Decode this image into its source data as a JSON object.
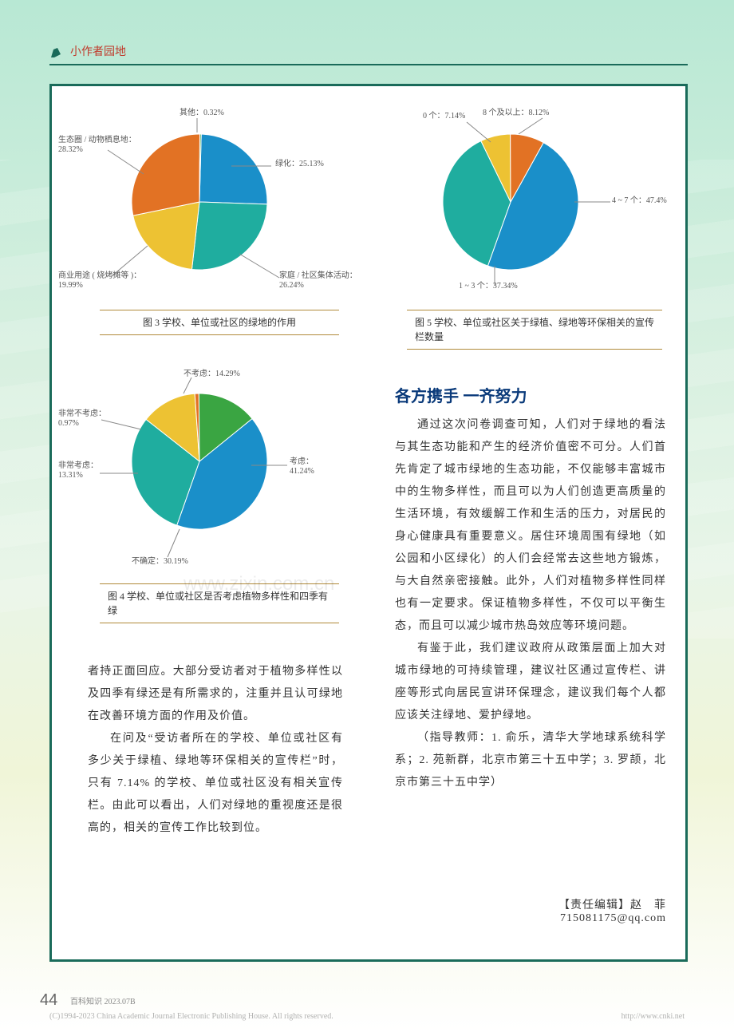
{
  "header": {
    "section_title": "小作者园地"
  },
  "charts": {
    "chart3": {
      "type": "pie",
      "caption": "图 3 学校、单位或社区的绿地的作用",
      "slices": [
        {
          "label": "绿化",
          "value": 25.13,
          "color": "#1a8fc9",
          "label_text": "绿化：25.13%"
        },
        {
          "label": "家庭/社区集体活动",
          "value": 26.24,
          "color": "#1fad9f",
          "label_text": "家庭 / 社区集体活动：\n26.24%"
        },
        {
          "label": "商业用途(烧烤摊等)",
          "value": 19.99,
          "color": "#edc233",
          "label_text": "商业用途 ( 烧烤摊等 )：\n19.99%"
        },
        {
          "label": "生态圈/动物栖息地",
          "value": 28.32,
          "color": "#e27224",
          "label_text": "生态圈 / 动物栖息地：\n28.32%"
        },
        {
          "label": "其他",
          "value": 0.32,
          "color": "#3aa542",
          "label_text": "其他：0.32%"
        }
      ]
    },
    "chart4": {
      "type": "pie",
      "caption": "图 4 学校、单位或社区是否考虑植物多样性和四季有绿",
      "slices": [
        {
          "label": "考虑",
          "value": 41.24,
          "color": "#1a8fc9",
          "label_text": "考虑：\n41.24%"
        },
        {
          "label": "不确定",
          "value": 30.19,
          "color": "#1fad9f",
          "label_text": "不确定：30.19%"
        },
        {
          "label": "非常考虑",
          "value": 13.31,
          "color": "#edc233",
          "label_text": "非常考虑：\n13.31%"
        },
        {
          "label": "非常不考虑",
          "value": 0.97,
          "color": "#e27224",
          "label_text": "非常不考虑：\n0.97%"
        },
        {
          "label": "不考虑",
          "value": 14.29,
          "color": "#3aa542",
          "label_text": "不考虑：14.29%"
        }
      ]
    },
    "chart5": {
      "type": "pie",
      "caption": "图 5 学校、单位或社区关于绿植、绿地等环保相关的宣传栏数量",
      "slices": [
        {
          "label": "4~7个",
          "value": 47.4,
          "color": "#1a8fc9",
          "label_text": "4 ~ 7 个：47.4%"
        },
        {
          "label": "1~3个",
          "value": 37.34,
          "color": "#1fad9f",
          "label_text": "1 ~ 3 个：37.34%"
        },
        {
          "label": "0个",
          "value": 7.14,
          "color": "#edc233",
          "label_text": "0 个：7.14%"
        },
        {
          "label": "8个及以上",
          "value": 8.12,
          "color": "#e27224",
          "label_text": "8 个及以上：8.12%"
        }
      ]
    }
  },
  "subheading": "各方携手  一齐努力",
  "body": {
    "left_1": "者持正面回应。大部分受访者对于植物多样性以及四季有绿还是有所需求的，注重并且认可绿地在改善环境方面的作用及价值。",
    "left_2": "在问及“受访者所在的学校、单位或社区有多少关于绿植、绿地等环保相关的宣传栏”时，只有 7.14% 的学校、单位或社区没有相关宣传栏。由此可以看出，人们对绿地的重视度还是很高的，相关的宣传工作比较到位。",
    "right_1": "通过这次问卷调查可知，人们对于绿地的看法与其生态功能和产生的经济价值密不可分。人们首先肯定了城市绿地的生态功能，不仅能够丰富城市中的生物多样性，而且可以为人们创造更高质量的生活环境，有效缓解工作和生活的压力，对居民的身心健康具有重要意义。居住环境周围有绿地（如公园和小区绿化）的人们会经常去这些地方锻炼，与大自然亲密接触。此外，人们对植物多样性同样也有一定要求。保证植物多样性，不仅可以平衡生态，而且可以减少城市热岛效应等环境问题。",
    "right_2": "有鉴于此，我们建议政府从政策层面上加大对城市绿地的可持续管理，建议社区通过宣传栏、讲座等形式向居民宣讲环保理念，建议我们每个人都应该关注绿地、爱护绿地。",
    "right_3": "（指导教师：1. 俞乐，清华大学地球系统科学系；2. 苑新群，北京市第三十五中学；3. 罗颉，北京市第三十五中学）"
  },
  "editor": {
    "label": "【责任编辑】赵　菲",
    "email": "715081175@qq.com"
  },
  "footer": {
    "page": "44",
    "pub": "百科知识 2023.07B",
    "copyright": "(C)1994-2023 China Academic Journal Electronic Publishing House. All rights reserved.",
    "link": "http://www.cnki.net"
  },
  "watermark": "www.zixin.com.cn"
}
